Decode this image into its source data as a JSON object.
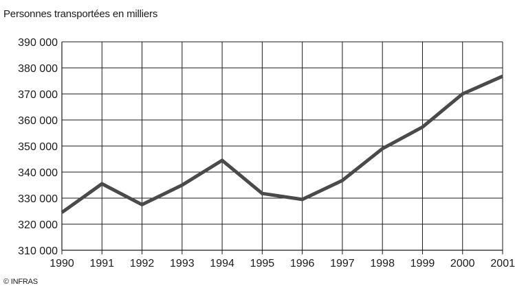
{
  "chart_data": {
    "type": "line",
    "title": "Personnes transportées en milliers",
    "xlabel": "",
    "ylabel": "",
    "x": [
      "1990",
      "1991",
      "1992",
      "1993",
      "1994",
      "1995",
      "1996",
      "1997",
      "1998",
      "1999",
      "2000",
      "2001"
    ],
    "series": [
      {
        "values": [
          324500,
          335500,
          327500,
          335000,
          344500,
          331800,
          329500,
          336800,
          349000,
          357300,
          370000,
          376800
        ],
        "color": "#4a4a4a"
      }
    ],
    "ylim": [
      310000,
      390000
    ],
    "yticks": [
      310000,
      320000,
      330000,
      340000,
      350000,
      360000,
      370000,
      380000,
      390000
    ],
    "ytick_labels": [
      "310 000",
      "320 000",
      "330 000",
      "340 000",
      "350 000",
      "360 000",
      "370 000",
      "380 000",
      "390 000"
    ],
    "grid": true,
    "legend": "none"
  },
  "source": "© INFRAS"
}
